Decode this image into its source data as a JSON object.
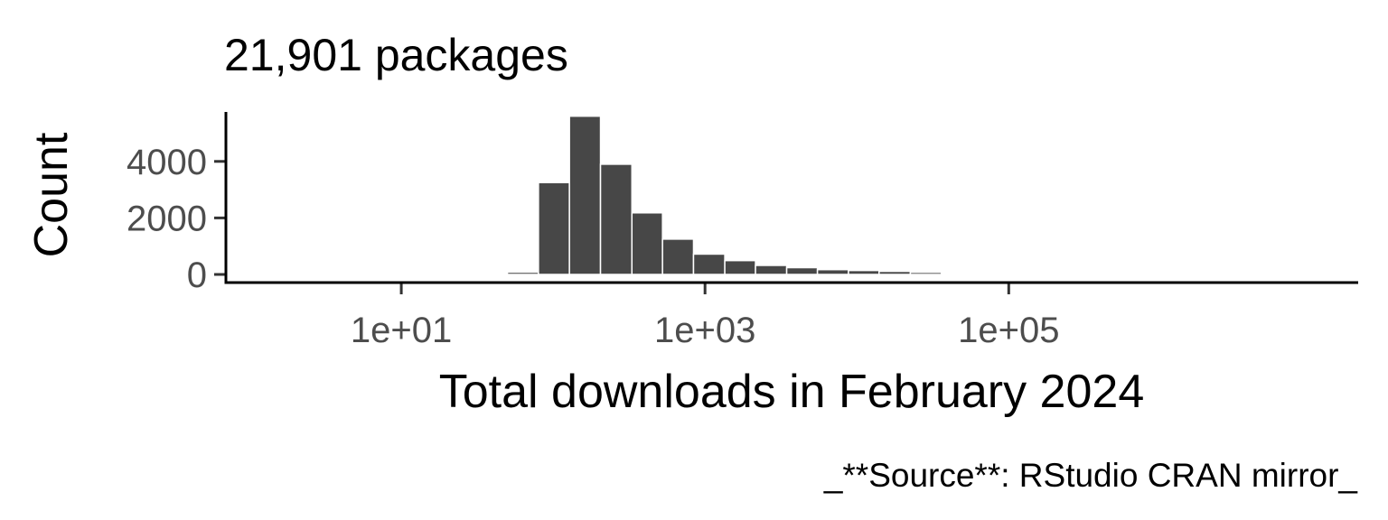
{
  "chart_data": {
    "type": "bar",
    "title": "21,901 packages",
    "xlabel": "Total downloads in February 2024",
    "ylabel": "Count",
    "caption": "_**Source**: RStudio CRAN mirror_",
    "x_scale": "log10",
    "xlim": [
      0.7,
      20000000
    ],
    "ylim": [
      0,
      5750
    ],
    "x_ticks": [
      {
        "value": 10,
        "label": "1e+01"
      },
      {
        "value": 1000,
        "label": "1e+03"
      },
      {
        "value": 100000,
        "label": "1e+05"
      }
    ],
    "y_ticks": [
      {
        "value": 0,
        "label": "0"
      },
      {
        "value": 2000,
        "label": "2000"
      },
      {
        "value": 4000,
        "label": "4000"
      }
    ],
    "bins": [
      {
        "x_min": 50,
        "x_max": 80,
        "count": 80
      },
      {
        "x_min": 80,
        "x_max": 128,
        "count": 3250
      },
      {
        "x_min": 128,
        "x_max": 205,
        "count": 5600
      },
      {
        "x_min": 205,
        "x_max": 330,
        "count": 3900
      },
      {
        "x_min": 330,
        "x_max": 525,
        "count": 2180
      },
      {
        "x_min": 525,
        "x_max": 840,
        "count": 1250
      },
      {
        "x_min": 840,
        "x_max": 1350,
        "count": 720
      },
      {
        "x_min": 1350,
        "x_max": 2150,
        "count": 490
      },
      {
        "x_min": 2150,
        "x_max": 3450,
        "count": 320
      },
      {
        "x_min": 3450,
        "x_max": 5500,
        "count": 240
      },
      {
        "x_min": 5500,
        "x_max": 8800,
        "count": 170
      },
      {
        "x_min": 8800,
        "x_max": 14000,
        "count": 140
      },
      {
        "x_min": 14000,
        "x_max": 22500,
        "count": 110
      },
      {
        "x_min": 22500,
        "x_max": 36000,
        "count": 75
      }
    ],
    "colors": {
      "bar": "#474747",
      "bar_outline": "#ffffff",
      "axis": "#000000",
      "tick_label": "#4d4d4d"
    },
    "grid": false,
    "legend": "none"
  }
}
